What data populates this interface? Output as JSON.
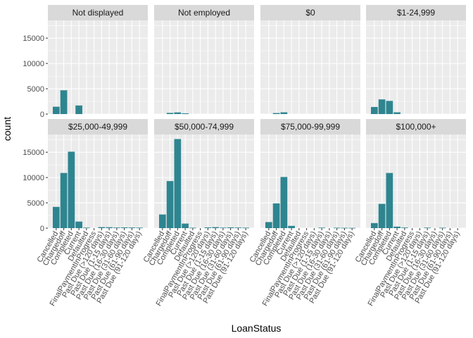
{
  "chart_data": {
    "type": "bar",
    "xlabel": "LoanStatus",
    "ylabel": "count",
    "ylim": [
      0,
      18500
    ],
    "yticks": [
      0,
      5000,
      10000,
      15000
    ],
    "ytick_labels": [
      "0",
      "5000",
      "10000",
      "15000"
    ],
    "bar_color": "#2e8590",
    "grid": true,
    "layout": "facet grid 2 rows x 4 columns, shared axes",
    "categories": [
      "Cancelled",
      "Chargedoff",
      "Completed",
      "Current",
      "Defaulted",
      "FinalPaymentInProgress",
      "Past Due (>120 days)",
      "Past Due (1-15 days)",
      "Past Due (16-30 days)",
      "Past Due (31-60 days)",
      "Past Due (61-90 days)",
      "Past Due (91-120 days)"
    ],
    "panels": [
      {
        "label": "Not displayed",
        "values": [
          1450,
          4700,
          0,
          1700,
          0,
          0,
          0,
          0,
          0,
          0,
          0,
          0
        ]
      },
      {
        "label": "Not employed",
        "values": [
          0,
          230,
          330,
          150,
          0,
          0,
          0,
          0,
          0,
          0,
          0,
          0
        ]
      },
      {
        "label": "$0",
        "values": [
          0,
          200,
          350,
          0,
          0,
          0,
          0,
          0,
          0,
          0,
          0,
          0
        ]
      },
      {
        "label": "$1-24,999",
        "values": [
          1400,
          2900,
          2600,
          350,
          0,
          0,
          0,
          0,
          0,
          0,
          0,
          0
        ]
      },
      {
        "label": "$25,000-49,999",
        "values": [
          4200,
          10900,
          15100,
          1300,
          100,
          0,
          200,
          180,
          120,
          150,
          130,
          100
        ]
      },
      {
        "label": "$50,000-74,999",
        "values": [
          2700,
          9300,
          17600,
          900,
          80,
          0,
          150,
          200,
          100,
          150,
          120,
          90
        ]
      },
      {
        "label": "$75,000-99,999",
        "values": [
          1200,
          4900,
          10100,
          450,
          0,
          0,
          0,
          100,
          0,
          80,
          60,
          50
        ]
      },
      {
        "label": "$100,000+",
        "values": [
          1000,
          4800,
          10900,
          300,
          120,
          0,
          0,
          100,
          0,
          80,
          0,
          0
        ]
      }
    ]
  }
}
